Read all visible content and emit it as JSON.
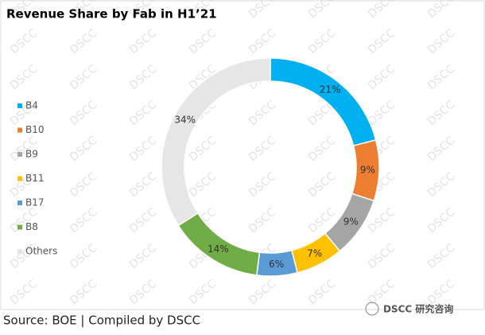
{
  "chart_data": {
    "type": "donut",
    "title": "Revenue Share by Fab in H1’21",
    "categories": [
      "B4",
      "B10",
      "B9",
      "B11",
      "B17",
      "B8",
      "Others"
    ],
    "values": [
      21,
      9,
      9,
      7,
      6,
      14,
      34
    ],
    "value_labels": [
      "21%",
      "9%",
      "9%",
      "7%",
      "6%",
      "14%",
      "34%"
    ],
    "colors": [
      "#00b0f0",
      "#ed7d31",
      "#a5a5a5",
      "#ffc000",
      "#5b9bd5",
      "#70ad47",
      "#e7e6e6"
    ],
    "legend": "left",
    "source": "Source: BOE | Compiled by DSCC",
    "watermark": "DSCC",
    "brand": "DSCC 研究咨询"
  }
}
